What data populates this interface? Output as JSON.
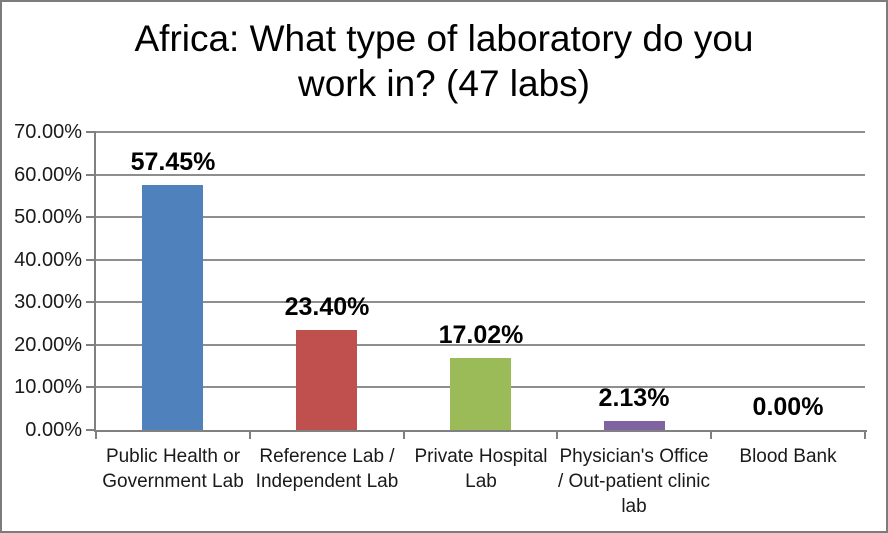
{
  "chart_data": {
    "type": "bar",
    "title": "Africa: What type of laboratory do you work in? (47 labs)",
    "categories": [
      "Public Health or Government Lab",
      "Reference Lab / Independent Lab",
      "Private Hospital Lab",
      "Physician's Office / Out-patient clinic lab",
      "Blood Bank"
    ],
    "values": [
      57.45,
      23.4,
      17.02,
      2.13,
      0.0
    ],
    "data_labels": [
      "57.45%",
      "23.40%",
      "17.02%",
      "2.13%",
      "0.00%"
    ],
    "bar_colors": [
      "#4F81BD",
      "#C0504D",
      "#9BBB59",
      "#8064A2",
      "#4BACC6"
    ],
    "xlabel": "",
    "ylabel": "",
    "ylim": [
      0,
      70
    ],
    "ytick_step": 10,
    "yticks": [
      "0.00%",
      "10.00%",
      "20.00%",
      "30.00%",
      "40.00%",
      "50.00%",
      "60.00%",
      "70.00%"
    ],
    "grid": true,
    "legend": "none",
    "colors": {
      "gridline": "#8E8E8E",
      "axis": "#808080",
      "axis_text": "#1A1A1A",
      "value_text": "#000000",
      "frame_border": "#7C7C7C",
      "background": "#FFFFFF"
    }
  }
}
